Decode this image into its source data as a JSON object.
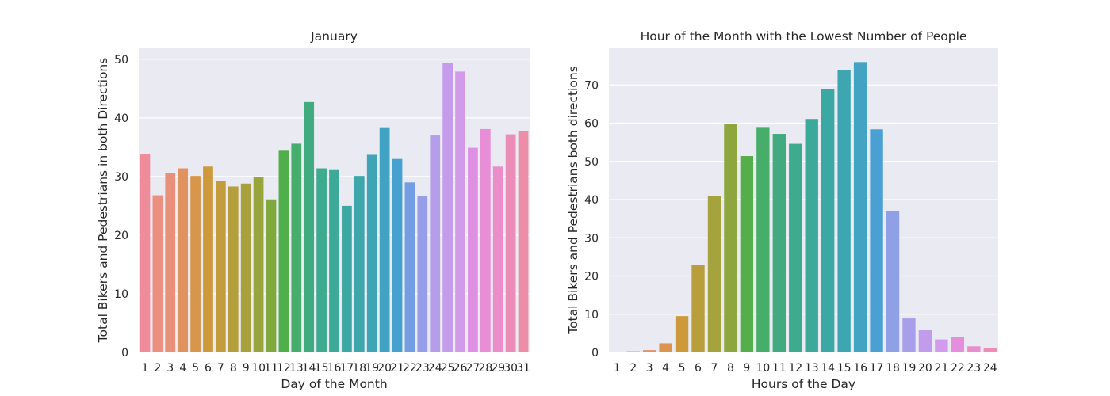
{
  "chart_data": [
    {
      "type": "bar",
      "title": "January",
      "xlabel": "Day of the Month",
      "ylabel": "Total Bikers and Pedestrians in both Directions",
      "categories": [
        "1",
        "2",
        "3",
        "4",
        "5",
        "6",
        "7",
        "8",
        "9",
        "10",
        "11",
        "12",
        "13",
        "14",
        "15",
        "16",
        "17",
        "18",
        "19",
        "20",
        "21",
        "22",
        "23",
        "24",
        "25",
        "26",
        "27",
        "28",
        "29",
        "30",
        "31"
      ],
      "values": [
        33.8,
        26.8,
        30.6,
        31.4,
        30.1,
        31.7,
        29.3,
        28.3,
        28.8,
        29.9,
        26.1,
        34.4,
        35.6,
        42.7,
        31.4,
        31.1,
        25.0,
        30.1,
        33.7,
        38.4,
        33.0,
        29.0,
        26.7,
        37.0,
        49.3,
        47.9,
        34.9,
        38.1,
        31.7,
        37.2,
        37.8
      ],
      "ylim": [
        0,
        52
      ],
      "yticks": [
        0,
        10,
        20,
        30,
        40,
        50
      ],
      "grid": true,
      "colors": [
        "#ee8c9a",
        "#ec8e80",
        "#e8907a",
        "#e0935f",
        "#d8964a",
        "#cd993a",
        "#c39c3b",
        "#b59f3c",
        "#a7a23c",
        "#98a53d",
        "#7fa83d",
        "#50af4b",
        "#46ad6d",
        "#41ab80",
        "#3eaa8e",
        "#3da998",
        "#3ca8a2",
        "#3da7ab",
        "#3fa5b6",
        "#41a3c3",
        "#46a0d0",
        "#749ee2",
        "#969de9",
        "#b49eea",
        "#c59ceb",
        "#d29bea",
        "#e090e3",
        "#e78ed6",
        "#ea8dc8",
        "#ec8db8",
        "#ec8ea8"
      ]
    },
    {
      "type": "bar",
      "title": "Hour of the Month with the Lowest Number of People",
      "xlabel": "Hours of the Day",
      "ylabel": "Total Bikers and Pedestrians both directions",
      "categories": [
        "1",
        "2",
        "3",
        "4",
        "5",
        "6",
        "7",
        "8",
        "9",
        "10",
        "11",
        "12",
        "13",
        "14",
        "15",
        "16",
        "17",
        "18",
        "19",
        "20",
        "21",
        "22",
        "23",
        "24"
      ],
      "values": [
        0.1,
        0.3,
        0.6,
        2.4,
        9.5,
        22.8,
        41.0,
        59.9,
        51.4,
        59.0,
        57.2,
        54.6,
        61.1,
        69.0,
        73.9,
        76.0,
        58.4,
        37.1,
        8.9,
        5.8,
        3.4,
        4.0,
        1.6,
        1.1
      ],
      "ylim": [
        0,
        79.8
      ],
      "yticks": [
        0,
        10,
        20,
        30,
        40,
        50,
        60,
        70
      ],
      "grid": true,
      "colors": [
        "#ee8c9a",
        "#ea8f80",
        "#e5926b",
        "#dd9450",
        "#cc9a3a",
        "#b99f3c",
        "#a4a33d",
        "#8ea63e",
        "#55ae4a",
        "#46ad6b",
        "#41ab7f",
        "#3eaa8e",
        "#3ca99a",
        "#3ca8a4",
        "#3ea6b0",
        "#42a3c2",
        "#4aa0d2",
        "#8fa0e6",
        "#a79fea",
        "#c09cea",
        "#d29beb",
        "#e38fde",
        "#e88ecc",
        "#ec8db8"
      ]
    }
  ]
}
